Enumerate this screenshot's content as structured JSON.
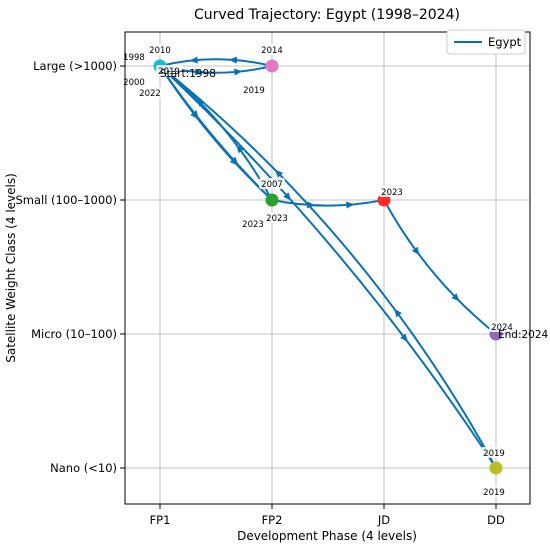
{
  "chart_data": {
    "type": "line",
    "title": "Curved Trajectory: Egypt (1998–2024)",
    "xlabel": "Development Phase (4 levels)",
    "ylabel": "Satellite Weight Class (4 levels)",
    "x_categories": [
      "FP1",
      "FP2",
      "JD",
      "DD"
    ],
    "y_categories": [
      "Nano (<10)",
      "Micro (10–100)",
      "Small (100–1000)",
      "Large (>1000)"
    ],
    "grid": true,
    "legend_position": "top-right",
    "series": [
      {
        "name": "Egypt",
        "color": "#0a72b4",
        "points": [
          {
            "year": "1998",
            "x": "FP1",
            "y": "Large (>1000)"
          },
          {
            "year": "2000",
            "x": "FP1",
            "y": "Large (>1000)"
          },
          {
            "year": "2007",
            "x": "FP2",
            "y": "Small (100–1000)"
          },
          {
            "year": "2010",
            "x": "FP1",
            "y": "Large (>1000)"
          },
          {
            "year": "2014",
            "x": "FP2",
            "y": "Large (>1000)"
          },
          {
            "year": "2019",
            "x": "FP2",
            "y": "Large (>1000)"
          },
          {
            "year": "2019",
            "x": "FP1",
            "y": "Large (>1000)"
          },
          {
            "year": "2019",
            "x": "DD",
            "y": "Nano (<10)"
          },
          {
            "year": "2019",
            "x": "DD",
            "y": "Nano (<10)"
          },
          {
            "year": "2022",
            "x": "FP1",
            "y": "Large (>1000)"
          },
          {
            "year": "2023",
            "x": "FP2",
            "y": "Small (100–1000)"
          },
          {
            "year": "2023",
            "x": "FP2",
            "y": "Small (100–1000)"
          },
          {
            "year": "2023",
            "x": "JD",
            "y": "Small (100–1000)"
          },
          {
            "year": "2024",
            "x": "DD",
            "y": "Micro (10–100)"
          }
        ]
      }
    ],
    "markers": [
      {
        "x": "FP1",
        "y": "Large (>1000)",
        "color": "#17becf"
      },
      {
        "x": "FP2",
        "y": "Large (>1000)",
        "color": "#e377c2"
      },
      {
        "x": "FP2",
        "y": "Small (100–1000)",
        "color": "#2ca02c"
      },
      {
        "x": "JD",
        "y": "Small (100–1000)",
        "color": "#ff2a2a"
      },
      {
        "x": "DD",
        "y": "Micro (10–100)",
        "color": "#9467bd"
      },
      {
        "x": "DD",
        "y": "Nano (<10)",
        "color": "#bcbd22"
      }
    ],
    "annotations": [
      {
        "text": "1998",
        "x": "FP1",
        "y": "Large (>1000)",
        "dx": -26,
        "dy": -10
      },
      {
        "text": "2010",
        "x": "FP1",
        "y": "Large (>1000)",
        "dx": 0,
        "dy": -17
      },
      {
        "text": "2019",
        "x": "FP1",
        "y": "Large (>1000)",
        "dx": 9,
        "dy": 4
      },
      {
        "text": "Start:1998",
        "x": "FP1",
        "y": "Large (>1000)",
        "dx": 0,
        "dy": 7,
        "big": true
      },
      {
        "text": "2000",
        "x": "FP1",
        "y": "Large (>1000)",
        "dx": -26,
        "dy": 15
      },
      {
        "text": "2022",
        "x": "FP1",
        "y": "Large (>1000)",
        "dx": -10,
        "dy": 26
      },
      {
        "text": "2014",
        "x": "FP2",
        "y": "Large (>1000)",
        "dx": 0,
        "dy": -17
      },
      {
        "text": "2019",
        "x": "FP2",
        "y": "Large (>1000)",
        "dx": -18,
        "dy": 23
      },
      {
        "text": "2007",
        "x": "FP2",
        "y": "Small (100–1000)",
        "dx": 0,
        "dy": -17
      },
      {
        "text": "2023",
        "x": "FP2",
        "y": "Small (100–1000)",
        "dx": -19,
        "dy": 23
      },
      {
        "text": "2023",
        "x": "FP2",
        "y": "Small (100–1000)",
        "dx": 5,
        "dy": 17
      },
      {
        "text": "2023",
        "x": "JD",
        "y": "Small (100–1000)",
        "dx": 8,
        "dy": -9
      },
      {
        "text": "2024",
        "x": "DD",
        "y": "Micro (10–100)",
        "dx": 6,
        "dy": -8
      },
      {
        "text": "End:2024",
        "x": "DD",
        "y": "Micro (10–100)",
        "dx": 2,
        "dy": 0,
        "big": true
      },
      {
        "text": "2019",
        "x": "DD",
        "y": "Nano (<10)",
        "dx": -2,
        "dy": -16
      },
      {
        "text": "2019",
        "x": "DD",
        "y": "Nano (<10)",
        "dx": -2,
        "dy": 23
      }
    ]
  }
}
